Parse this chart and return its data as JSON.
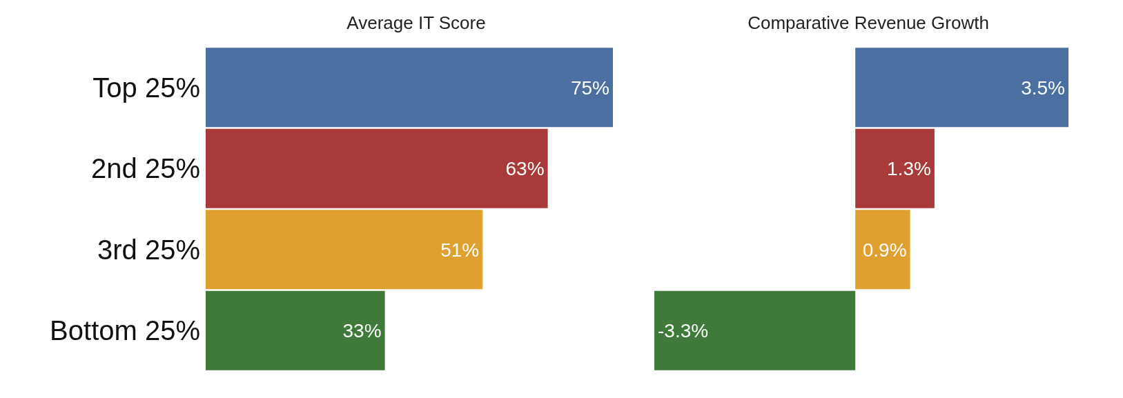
{
  "chart_data": [
    {
      "type": "bar",
      "orientation": "horizontal",
      "title": "Average IT Score",
      "categories": [
        "Top 25%",
        "2nd 25%",
        "3rd 25%",
        "Bottom 25%"
      ],
      "values": [
        75,
        63,
        51,
        33
      ],
      "value_labels": [
        "75%",
        "63%",
        "51%",
        "33%"
      ],
      "colors": [
        "#4a6fa0",
        "#a83a3a",
        "#e0a030",
        "#3f7a3a"
      ],
      "tick_labels": "y"
    },
    {
      "type": "bar",
      "orientation": "horizontal",
      "title": "Comparative Revenue Growth",
      "categories": [
        null,
        null,
        null,
        null
      ],
      "values": [
        3.5,
        1.3,
        0.9,
        -3.3
      ],
      "value_labels": [
        "3.5%",
        "1.3%",
        "0.9%",
        "-3.3%"
      ],
      "colors": [
        "#4a6fa0",
        "#a83a3a",
        "#e0a030",
        "#3f7a3a"
      ],
      "tick_labels": false
    }
  ]
}
